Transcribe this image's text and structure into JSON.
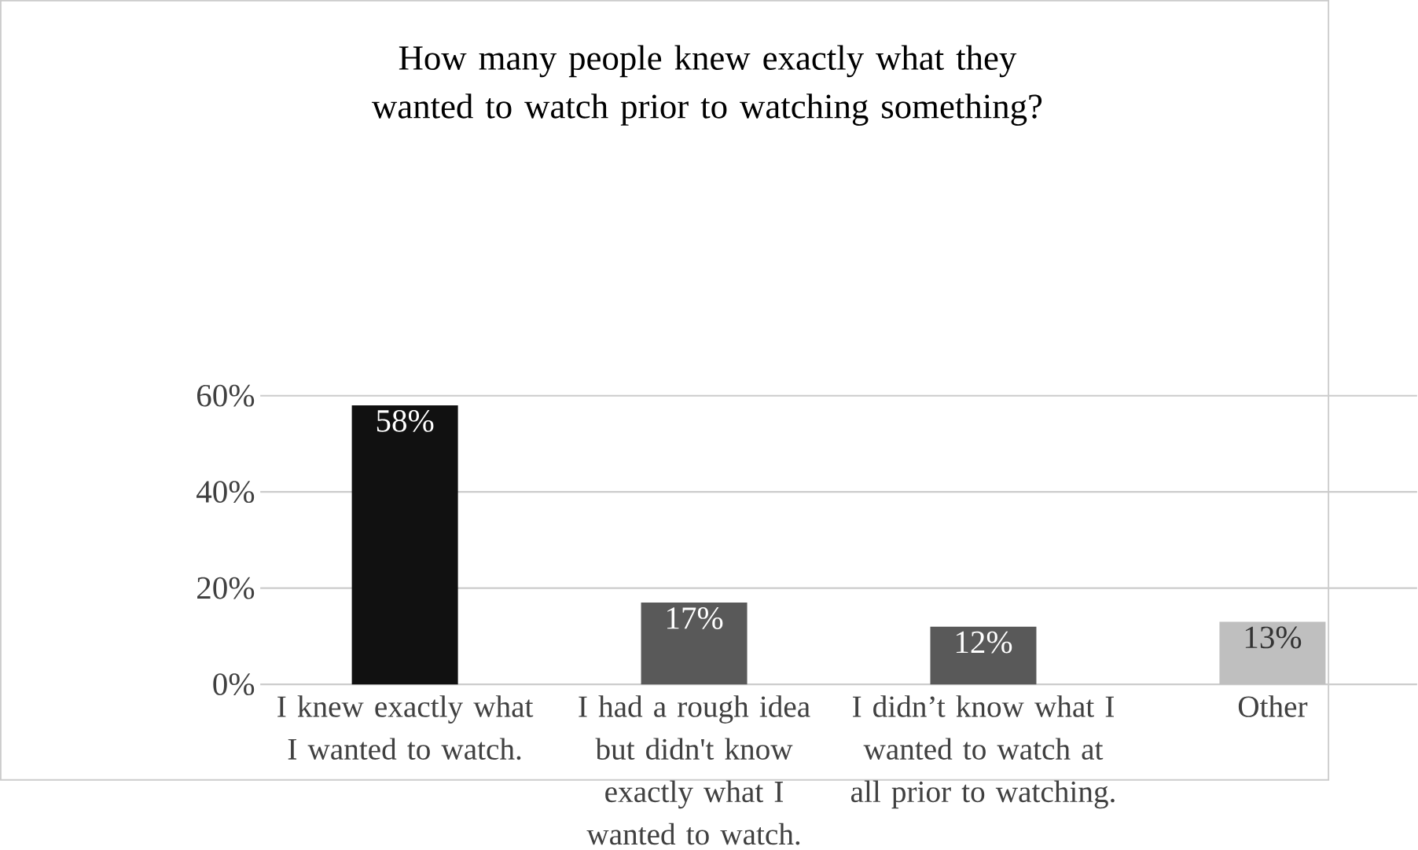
{
  "chart_data": {
    "type": "bar",
    "title": "How many people knew exactly what they wanted to watch prior to watching something?",
    "categories": [
      "I knew exactly what I wanted to watch.",
      "I had a rough idea but didn't know exactly what I wanted to watch.",
      "I didn’t know what I wanted to watch at all prior to watching.",
      "Other"
    ],
    "values": [
      58,
      17,
      12,
      13
    ],
    "value_labels": [
      "58%",
      "17%",
      "12%",
      "13%"
    ],
    "colors": [
      "#111111",
      "#595959",
      "#595959",
      "#bfbfbf"
    ],
    "ylim": [
      0,
      60
    ],
    "yticks": [
      {
        "value": 0,
        "label": "0%"
      },
      {
        "value": 20,
        "label": "20%"
      },
      {
        "value": 40,
        "label": "40%"
      },
      {
        "value": 60,
        "label": "60%"
      }
    ],
    "grid": "y"
  }
}
